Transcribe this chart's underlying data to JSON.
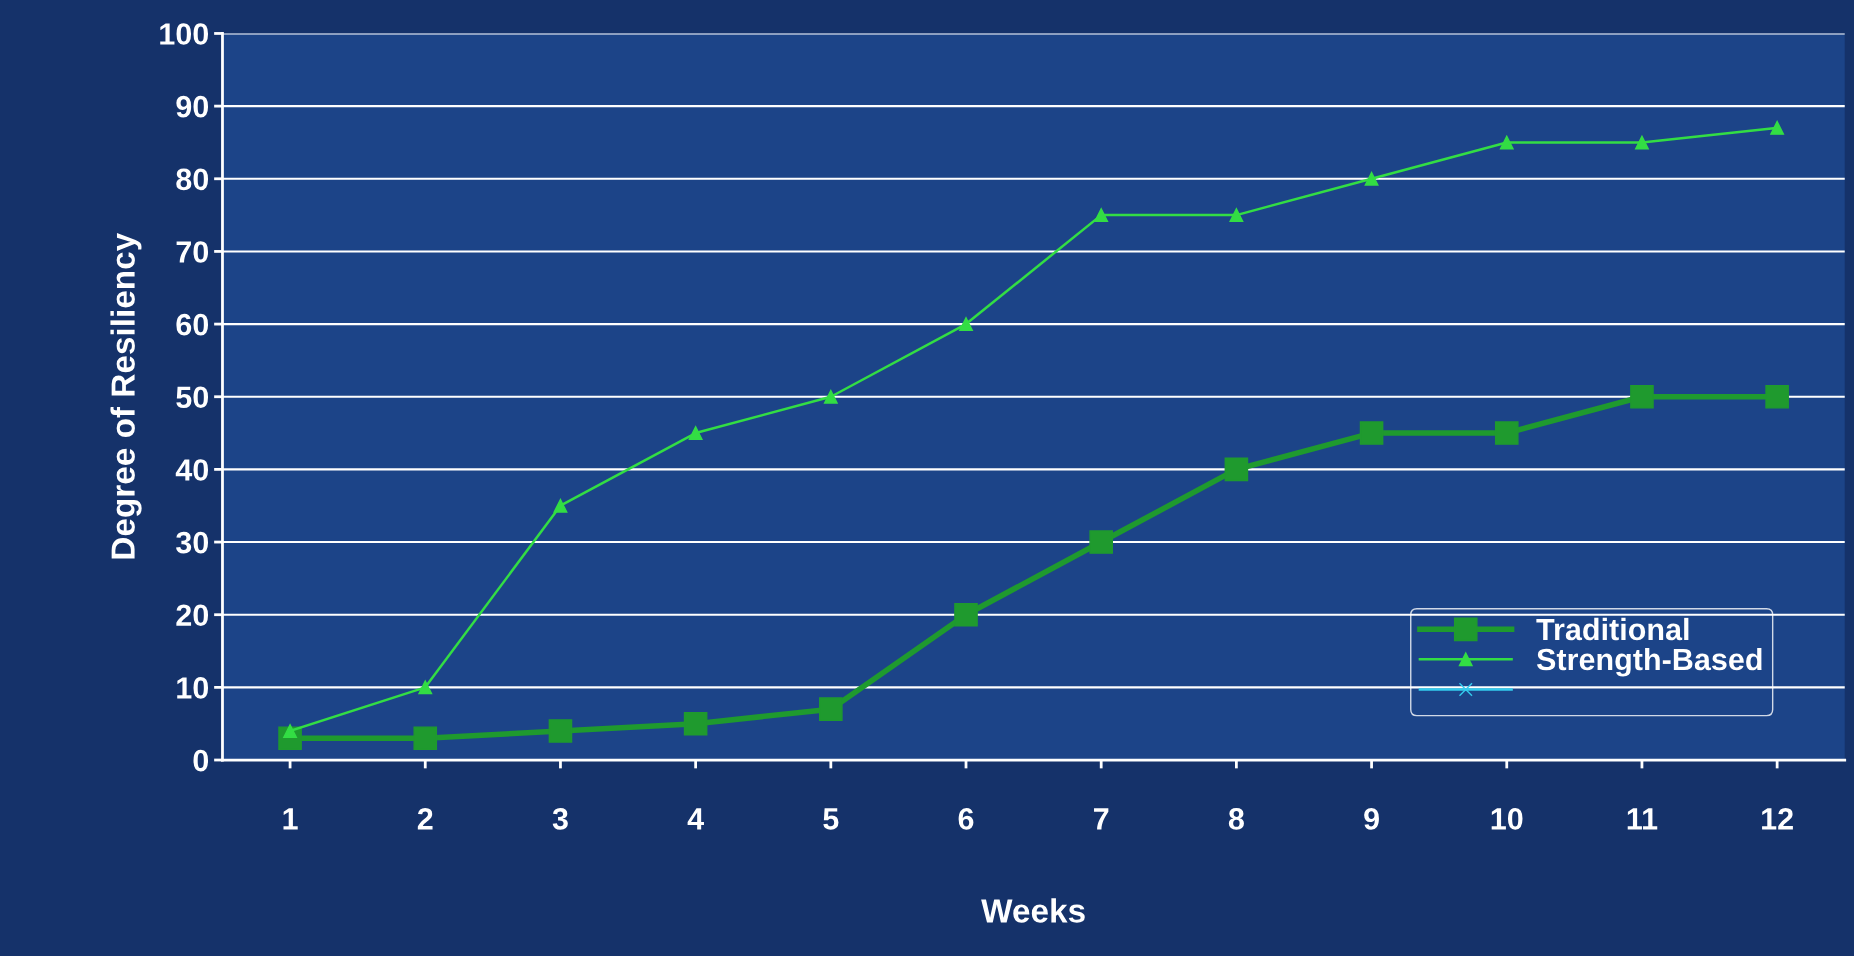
{
  "chart_data": {
    "type": "line",
    "xlabel": "Weeks",
    "ylabel": "Degree of Resiliency",
    "categories": [
      "1",
      "2",
      "3",
      "4",
      "5",
      "6",
      "7",
      "8",
      "9",
      "10",
      "11",
      "12"
    ],
    "ylim": [
      0,
      100
    ],
    "yticks": [
      0,
      10,
      20,
      30,
      40,
      50,
      60,
      70,
      80,
      90,
      100
    ],
    "grid": "y",
    "legend": "bottom right",
    "series": [
      {
        "name": "Traditional",
        "color": "#1f9a2e",
        "marker": "square",
        "values": [
          3,
          3,
          4,
          5,
          7,
          20,
          30,
          40,
          45,
          45,
          50,
          50
        ]
      },
      {
        "name": "Strength-Based",
        "color": "#33dd44",
        "marker": "triangle",
        "values": [
          4,
          10,
          35,
          45,
          50,
          60,
          75,
          75,
          80,
          85,
          85,
          87
        ]
      },
      {
        "color": "#33ccee",
        "marker": "cross",
        "values": [
          null,
          null,
          null,
          null,
          null,
          null,
          null,
          null,
          null,
          null,
          null,
          null
        ]
      }
    ]
  }
}
